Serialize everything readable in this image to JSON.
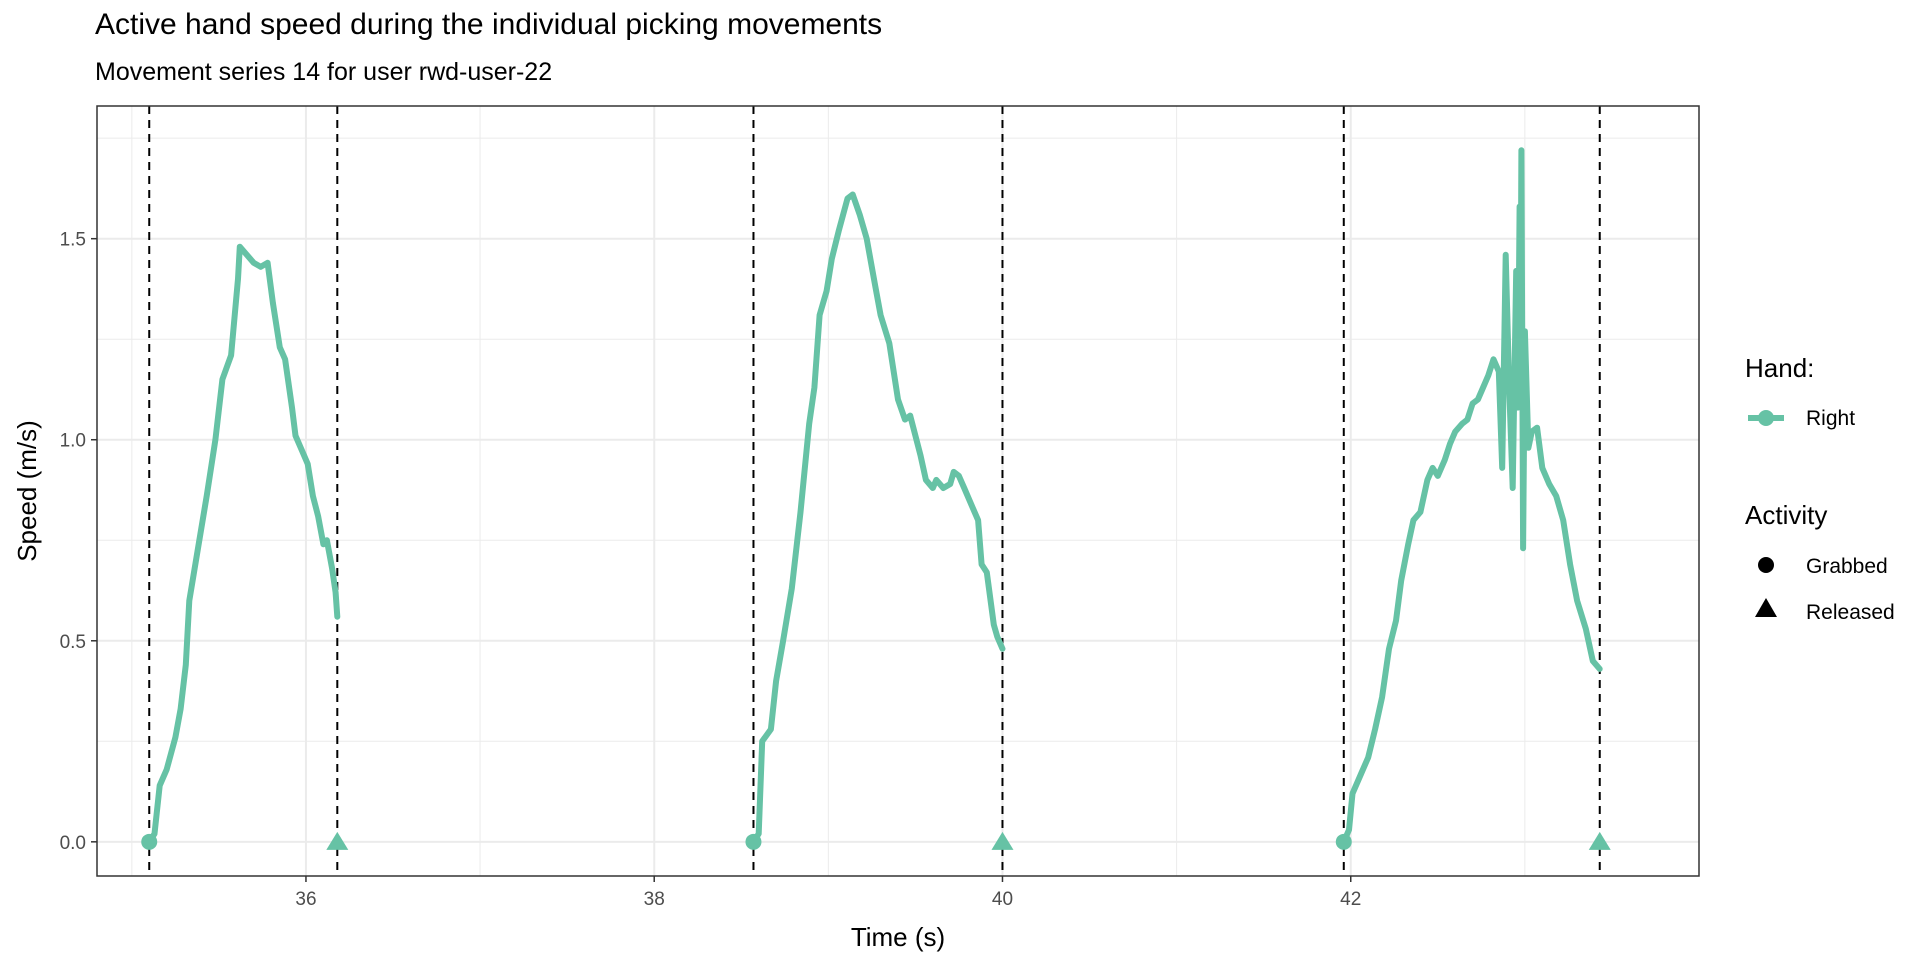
{
  "chart_data": {
    "type": "line",
    "title": "Active hand speed during the individual picking movements",
    "subtitle": "Movement series 14 for user rwd-user-22",
    "xlabel": "Time (s)",
    "ylabel": "Speed (m/s)",
    "xlim": [
      34.8,
      44.0
    ],
    "ylim": [
      -0.085,
      1.83
    ],
    "x_ticks": [
      36,
      38,
      40,
      42
    ],
    "x_tick_labels": [
      "36",
      "38",
      "40",
      "42"
    ],
    "y_ticks": [
      0.0,
      0.5,
      1.0,
      1.5
    ],
    "y_tick_labels": [
      "0.0",
      "0.5",
      "1.0",
      "1.5"
    ],
    "grid": true,
    "legend_position": "right",
    "colors": {
      "series": "#66c2a5",
      "vlines": "#000000",
      "grid": "#ebebeb",
      "panel_border": "#333333"
    },
    "legend": {
      "hand_title": "Hand:",
      "hand_entries": [
        {
          "label": "Right",
          "color": "#66c2a5"
        }
      ],
      "activity_title": "Activity",
      "activity_entries": [
        {
          "label": "Grabbed",
          "shape": "circle"
        },
        {
          "label": "Released",
          "shape": "triangle"
        }
      ]
    },
    "vertical_lines_x": [
      35.1,
      36.18,
      38.57,
      40.0,
      41.96,
      43.43
    ],
    "series": [
      {
        "name": "Right",
        "segments": [
          [
            [
              35.1,
              0.0
            ],
            [
              35.13,
              0.02
            ],
            [
              35.16,
              0.14
            ],
            [
              35.2,
              0.18
            ],
            [
              35.25,
              0.26
            ],
            [
              35.28,
              0.33
            ],
            [
              35.31,
              0.44
            ],
            [
              35.33,
              0.6
            ],
            [
              35.38,
              0.73
            ],
            [
              35.43,
              0.86
            ],
            [
              35.48,
              1.0
            ],
            [
              35.52,
              1.15
            ],
            [
              35.57,
              1.21
            ],
            [
              35.61,
              1.4
            ],
            [
              35.62,
              1.48
            ],
            [
              35.66,
              1.46
            ],
            [
              35.7,
              1.44
            ],
            [
              35.74,
              1.43
            ],
            [
              35.78,
              1.44
            ],
            [
              35.81,
              1.34
            ],
            [
              35.85,
              1.23
            ],
            [
              35.88,
              1.2
            ],
            [
              35.92,
              1.08
            ],
            [
              35.94,
              1.01
            ],
            [
              35.98,
              0.97
            ],
            [
              36.01,
              0.94
            ],
            [
              36.04,
              0.86
            ],
            [
              36.07,
              0.81
            ],
            [
              36.1,
              0.74
            ],
            [
              36.12,
              0.75
            ],
            [
              36.15,
              0.68
            ],
            [
              36.17,
              0.62
            ],
            [
              36.18,
              0.56
            ]
          ],
          [
            [
              38.57,
              0.0
            ],
            [
              38.6,
              0.02
            ],
            [
              38.62,
              0.25
            ],
            [
              38.67,
              0.28
            ],
            [
              38.7,
              0.4
            ],
            [
              38.74,
              0.5
            ],
            [
              38.79,
              0.63
            ],
            [
              38.84,
              0.82
            ],
            [
              38.89,
              1.04
            ],
            [
              38.92,
              1.13
            ],
            [
              38.95,
              1.31
            ],
            [
              38.99,
              1.37
            ],
            [
              39.02,
              1.45
            ],
            [
              39.06,
              1.52
            ],
            [
              39.11,
              1.6
            ],
            [
              39.14,
              1.61
            ],
            [
              39.18,
              1.56
            ],
            [
              39.22,
              1.5
            ],
            [
              39.27,
              1.38
            ],
            [
              39.3,
              1.31
            ],
            [
              39.35,
              1.24
            ],
            [
              39.4,
              1.1
            ],
            [
              39.44,
              1.05
            ],
            [
              39.47,
              1.06
            ],
            [
              39.53,
              0.96
            ],
            [
              39.56,
              0.9
            ],
            [
              39.6,
              0.88
            ],
            [
              39.62,
              0.9
            ],
            [
              39.66,
              0.88
            ],
            [
              39.7,
              0.89
            ],
            [
              39.72,
              0.92
            ],
            [
              39.75,
              0.91
            ],
            [
              39.78,
              0.88
            ],
            [
              39.82,
              0.84
            ],
            [
              39.86,
              0.8
            ],
            [
              39.88,
              0.69
            ],
            [
              39.91,
              0.67
            ],
            [
              39.95,
              0.54
            ],
            [
              39.97,
              0.51
            ],
            [
              40.0,
              0.48
            ]
          ],
          [
            [
              41.96,
              0.0
            ],
            [
              41.99,
              0.03
            ],
            [
              42.01,
              0.12
            ],
            [
              42.06,
              0.17
            ],
            [
              42.1,
              0.21
            ],
            [
              42.14,
              0.28
            ],
            [
              42.18,
              0.36
            ],
            [
              42.22,
              0.48
            ],
            [
              42.26,
              0.55
            ],
            [
              42.29,
              0.65
            ],
            [
              42.33,
              0.74
            ],
            [
              42.36,
              0.8
            ],
            [
              42.4,
              0.82
            ],
            [
              42.44,
              0.9
            ],
            [
              42.47,
              0.93
            ],
            [
              42.5,
              0.91
            ],
            [
              42.54,
              0.95
            ],
            [
              42.57,
              0.99
            ],
            [
              42.6,
              1.02
            ],
            [
              42.64,
              1.04
            ],
            [
              42.67,
              1.05
            ],
            [
              42.7,
              1.09
            ],
            [
              42.73,
              1.1
            ],
            [
              42.76,
              1.13
            ],
            [
              42.79,
              1.16
            ],
            [
              42.82,
              1.2
            ],
            [
              42.85,
              1.17
            ],
            [
              42.87,
              0.93
            ],
            [
              42.89,
              1.46
            ],
            [
              42.91,
              1.13
            ],
            [
              42.93,
              0.88
            ],
            [
              42.95,
              1.42
            ],
            [
              42.96,
              1.08
            ],
            [
              42.97,
              1.58
            ],
            [
              42.975,
              1.25
            ],
            [
              42.98,
              1.72
            ],
            [
              42.99,
              0.73
            ],
            [
              43.0,
              1.27
            ],
            [
              43.02,
              0.98
            ],
            [
              43.04,
              1.02
            ],
            [
              43.07,
              1.03
            ],
            [
              43.1,
              0.93
            ],
            [
              43.14,
              0.89
            ],
            [
              43.18,
              0.86
            ],
            [
              43.22,
              0.8
            ],
            [
              43.26,
              0.69
            ],
            [
              43.3,
              0.6
            ],
            [
              43.35,
              0.53
            ],
            [
              43.39,
              0.45
            ],
            [
              43.43,
              0.43
            ]
          ]
        ]
      }
    ],
    "events": [
      {
        "activity": "Grabbed",
        "x": 35.1,
        "y": 0.0
      },
      {
        "activity": "Released",
        "x": 36.18,
        "y": 0.0
      },
      {
        "activity": "Grabbed",
        "x": 38.57,
        "y": 0.0
      },
      {
        "activity": "Released",
        "x": 40.0,
        "y": 0.0
      },
      {
        "activity": "Grabbed",
        "x": 41.96,
        "y": 0.0
      },
      {
        "activity": "Released",
        "x": 43.43,
        "y": 0.0
      }
    ]
  }
}
